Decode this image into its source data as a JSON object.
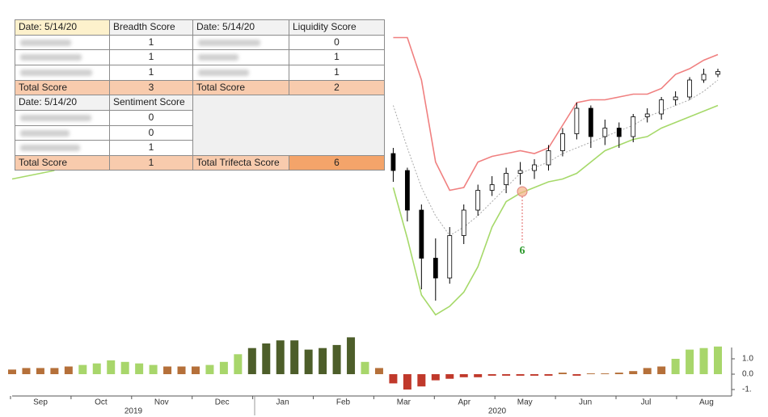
{
  "table": {
    "rows": [
      [
        "Date: 5/14/20",
        "Breadth Score",
        "Date: 5/14/20",
        "Liquidity Score"
      ],
      [
        null,
        1,
        null,
        0
      ],
      [
        null,
        1,
        null,
        1
      ],
      [
        null,
        1,
        null,
        1
      ],
      [
        "Total Score",
        3,
        "Total Score",
        2
      ],
      [
        "Date: 5/14/20",
        "Sentiment Score",
        null,
        null
      ],
      [
        null,
        0,
        null,
        null
      ],
      [
        null,
        0,
        null,
        null
      ],
      [
        null,
        1,
        null,
        null
      ],
      [
        "Total Score",
        1,
        "Total Trifecta Score",
        6
      ]
    ]
  },
  "chart_data": [
    {
      "type": "candlestick",
      "ylim": [
        0,
        105
      ],
      "annotation": "6",
      "open": [
        null,
        null,
        null,
        null,
        null,
        null,
        null,
        null,
        null,
        null,
        null,
        null,
        null,
        null,
        null,
        null,
        null,
        null,
        null,
        null,
        null,
        null,
        null,
        null,
        null,
        null,
        null,
        60,
        54,
        40,
        23,
        16,
        31,
        40,
        47,
        49,
        53,
        54,
        56,
        61,
        67,
        76,
        66,
        69,
        66,
        73,
        74,
        79,
        80,
        86,
        88
      ],
      "high": [
        null,
        null,
        null,
        null,
        null,
        null,
        null,
        null,
        null,
        null,
        null,
        null,
        null,
        null,
        null,
        null,
        null,
        null,
        null,
        null,
        null,
        null,
        null,
        null,
        null,
        null,
        null,
        62,
        55,
        42,
        30,
        34,
        42,
        49,
        52,
        55,
        57,
        58,
        63,
        69,
        78,
        77,
        72,
        71,
        74,
        76,
        80,
        82,
        87,
        90,
        90
      ],
      "low": [
        null,
        null,
        null,
        null,
        null,
        null,
        null,
        null,
        null,
        null,
        null,
        null,
        null,
        null,
        null,
        null,
        null,
        null,
        null,
        null,
        null,
        null,
        null,
        null,
        null,
        null,
        null,
        50,
        36,
        12,
        8,
        14,
        28,
        38,
        45,
        46,
        49,
        51,
        54,
        59,
        65,
        62,
        63,
        62,
        64,
        71,
        72,
        77,
        79,
        85,
        87
      ],
      "close": [
        null,
        null,
        null,
        null,
        null,
        null,
        null,
        null,
        null,
        null,
        null,
        null,
        null,
        null,
        null,
        null,
        null,
        null,
        null,
        null,
        null,
        null,
        null,
        null,
        null,
        null,
        null,
        54,
        40,
        23,
        16,
        31,
        40,
        47,
        49,
        53,
        54,
        56,
        61,
        67,
        76,
        66,
        69,
        66,
        73,
        74,
        79,
        80,
        86,
        88,
        89
      ],
      "bands": [
        {
          "color": "#f08080",
          "values": [
            null,
            null,
            null,
            null,
            null,
            null,
            null,
            null,
            null,
            null,
            null,
            null,
            null,
            null,
            null,
            null,
            null,
            null,
            null,
            null,
            null,
            null,
            null,
            null,
            null,
            null,
            null,
            101,
            101,
            86,
            57,
            47,
            48,
            57,
            59,
            60,
            61,
            60,
            62,
            70,
            78,
            79,
            79,
            80,
            81,
            81,
            83,
            88,
            90,
            93,
            95
          ]
        },
        {
          "color": "#aaaaaa",
          "values": [
            null,
            null,
            null,
            null,
            null,
            null,
            null,
            null,
            null,
            null,
            null,
            null,
            null,
            null,
            null,
            null,
            null,
            null,
            null,
            null,
            null,
            null,
            null,
            null,
            null,
            null,
            null,
            77,
            62,
            48,
            38,
            31,
            34,
            38,
            43,
            48,
            53,
            55,
            57,
            60,
            62,
            64,
            66,
            68,
            70,
            73,
            75,
            77,
            79,
            82,
            86
          ]
        },
        {
          "color": "#a6d96a",
          "values": [
            51,
            52,
            53,
            54,
            null,
            null,
            null,
            null,
            null,
            null,
            null,
            null,
            null,
            null,
            null,
            null,
            null,
            null,
            null,
            null,
            null,
            null,
            null,
            null,
            null,
            null,
            null,
            48,
            30,
            10,
            3,
            6,
            11,
            20,
            34,
            43,
            46,
            48,
            50,
            51,
            53,
            57,
            61,
            63,
            65,
            66,
            69,
            71,
            73,
            75,
            77
          ]
        }
      ]
    },
    {
      "type": "bar",
      "ylim": [
        -1.5,
        3
      ],
      "yticks": [
        {
          "value": 1,
          "label": "1.0"
        },
        {
          "value": 0,
          "label": "0.0"
        },
        {
          "value": -1,
          "label": "-1."
        }
      ],
      "x_tick_labels": [
        "Sep",
        "Oct",
        "Nov",
        "Dec",
        "Jan",
        "Feb",
        "Mar",
        "Apr",
        "May",
        "Jun",
        "Jul",
        "Aug"
      ],
      "x_group_labels": [
        "2019",
        "2020"
      ],
      "values": [
        0.3,
        0.4,
        0.4,
        0.4,
        0.5,
        0.6,
        0.7,
        0.9,
        0.8,
        0.7,
        0.6,
        0.5,
        0.5,
        0.5,
        0.6,
        0.8,
        1.3,
        1.7,
        2.0,
        2.2,
        2.2,
        1.6,
        1.7,
        1.9,
        2.4,
        0.8,
        0.4,
        -0.6,
        -1.0,
        -0.8,
        -0.4,
        -0.3,
        -0.2,
        -0.2,
        -0.1,
        -0.1,
        -0.1,
        -0.1,
        -0.1,
        0.1,
        -0.1,
        0.05,
        0.05,
        0.1,
        0.2,
        0.4,
        0.5,
        1.0,
        1.6,
        1.7,
        1.8
      ],
      "colors": [
        "#b5703a",
        "#b5703a",
        "#b5703a",
        "#b5703a",
        "#b5703a",
        "#a8d66b",
        "#a8d66b",
        "#a8d66b",
        "#a8d66b",
        "#a8d66b",
        "#a8d66b",
        "#b5703a",
        "#b5703a",
        "#b5703a",
        "#a8d66b",
        "#a8d66b",
        "#a8d66b",
        "#4d5e2a",
        "#4d5e2a",
        "#4d5e2a",
        "#4d5e2a",
        "#4d5e2a",
        "#4d5e2a",
        "#4d5e2a",
        "#4d5e2a",
        "#a8d66b",
        "#b5703a",
        "#c0392b",
        "#c0392b",
        "#c0392b",
        "#c0392b",
        "#c0392b",
        "#c0392b",
        "#c0392b",
        "#c0392b",
        "#c0392b",
        "#c0392b",
        "#c0392b",
        "#c0392b",
        "#b5703a",
        "#c0392b",
        "#b5703a",
        "#b5703a",
        "#b5703a",
        "#b5703a",
        "#b5703a",
        "#b5703a",
        "#a8d66b",
        "#a8d66b",
        "#a8d66b",
        "#a8d66b"
      ]
    }
  ]
}
